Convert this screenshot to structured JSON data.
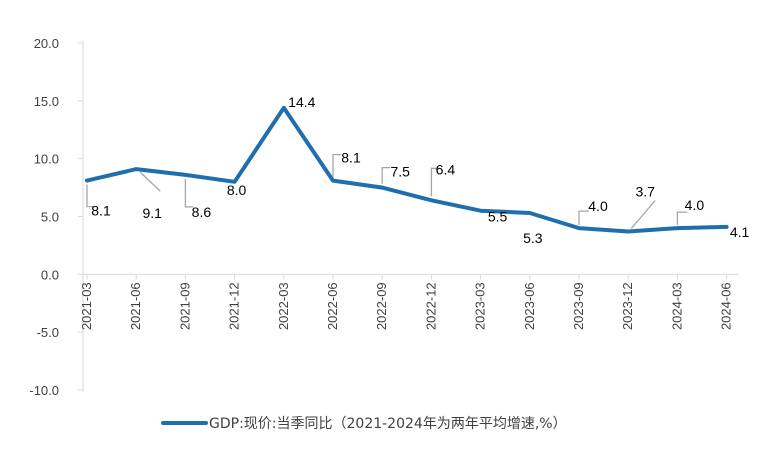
{
  "chart_data": {
    "type": "line",
    "categories": [
      "2021-03",
      "2021-06",
      "2021-09",
      "2021-12",
      "2022-03",
      "2022-06",
      "2022-09",
      "2022-12",
      "2023-03",
      "2023-06",
      "2023-09",
      "2023-12",
      "2024-03",
      "2024-06"
    ],
    "series": [
      {
        "name": "GDP:现价:当季同比（2021-2024年为两年平均增速,%）",
        "values": [
          8.1,
          9.1,
          8.6,
          8.0,
          14.4,
          8.1,
          7.5,
          6.4,
          5.5,
          5.3,
          4.0,
          3.7,
          4.0,
          4.1
        ],
        "labels": [
          "8.1",
          "9.1",
          "8.6",
          "8.0",
          "14.4",
          "8.1",
          "7.5",
          "6.4",
          "5.5",
          "5.3",
          "4.0",
          "3.7",
          "4.0",
          "4.1"
        ]
      }
    ],
    "y_ticks": [
      "20.0",
      "15.0",
      "10.0",
      "5.0",
      "0.0",
      "-5.0",
      "-10.0"
    ],
    "ylim": [
      -10,
      20
    ],
    "grid": false,
    "legend_position": "bottom",
    "colors": {
      "line": "#1f6fae",
      "leader": "#a6a6a6",
      "axis": "#d9d9d9"
    }
  }
}
